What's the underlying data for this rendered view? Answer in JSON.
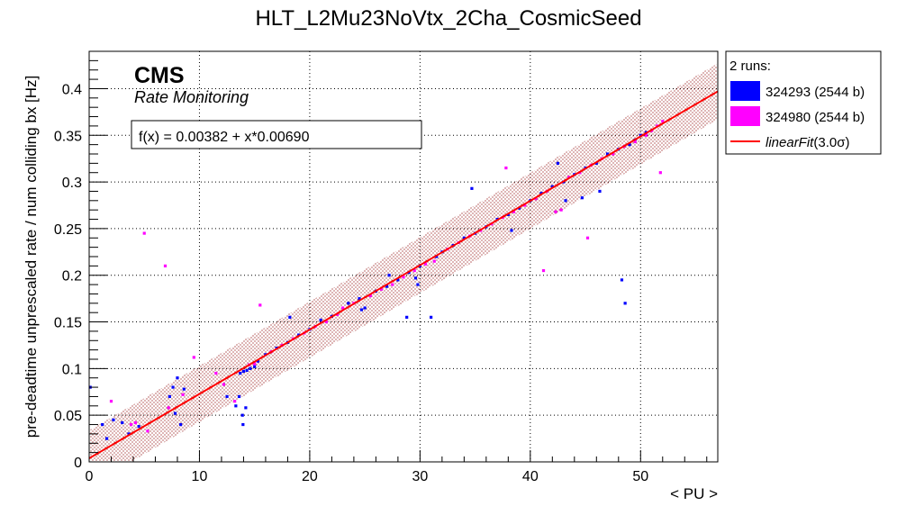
{
  "chart_data": {
    "type": "scatter",
    "title": "HLT_L2Mu23NoVtx_2Cha_CosmicSeed",
    "xlabel": "< PU >",
    "ylabel": "pre-deadtime unprescaled rate / num colliding bx [Hz]",
    "xlim": [
      0,
      57
    ],
    "ylim": [
      0,
      0.44
    ],
    "x_ticks": [
      0,
      10,
      20,
      30,
      40,
      50
    ],
    "y_ticks": [
      0,
      0.05,
      0.1,
      0.15,
      0.2,
      0.25,
      0.3,
      0.35,
      0.4
    ],
    "x_tick_labels": [
      "0",
      "10",
      "20",
      "30",
      "40",
      "50"
    ],
    "y_tick_labels": [
      "0",
      "0.05",
      "0.1",
      "0.15",
      "0.2",
      "0.25",
      "0.3",
      "0.35",
      "0.4"
    ],
    "grid": true,
    "cms_label": "CMS",
    "cms_sublabel": "Rate Monitoring",
    "fit": {
      "label": "f(x) = 0.00382 + x*0.00690",
      "intercept": 0.00382,
      "slope": 0.0069,
      "band_halfwidth": 0.03,
      "color": "#ff0000",
      "band_color": "#8b0000"
    },
    "legend": {
      "position": "top-right",
      "header": "2 runs:",
      "entries": [
        {
          "label": "324293 (2544 b)",
          "color": "#0000ff",
          "kind": "box"
        },
        {
          "label": "324980 (2544 b)",
          "color": "#ff00ff",
          "kind": "box"
        },
        {
          "label_main": "linearFit",
          "label_suffix": "(3.0σ)",
          "color": "#ff0000",
          "kind": "line"
        }
      ]
    },
    "series": [
      {
        "name": "324293 (2544 b)",
        "color": "#0000ff",
        "points": [
          [
            0.1,
            0.08
          ],
          [
            1.2,
            0.04
          ],
          [
            1.6,
            0.025
          ],
          [
            2.2,
            0.045
          ],
          [
            3.0,
            0.042
          ],
          [
            3.6,
            0.03
          ],
          [
            4.5,
            0.038
          ],
          [
            7.3,
            0.07
          ],
          [
            7.6,
            0.08
          ],
          [
            7.8,
            0.052
          ],
          [
            8.0,
            0.09
          ],
          [
            8.3,
            0.04
          ],
          [
            8.6,
            0.078
          ],
          [
            12.5,
            0.07
          ],
          [
            13.3,
            0.06
          ],
          [
            13.6,
            0.07
          ],
          [
            13.9,
            0.05
          ],
          [
            13.95,
            0.04
          ],
          [
            14.2,
            0.058
          ],
          [
            13.7,
            0.095
          ],
          [
            14.0,
            0.097
          ],
          [
            14.3,
            0.098
          ],
          [
            14.6,
            0.1
          ],
          [
            15.0,
            0.102
          ],
          [
            15.3,
            0.108
          ],
          [
            16.0,
            0.115
          ],
          [
            17.0,
            0.122
          ],
          [
            18.0,
            0.128
          ],
          [
            18.2,
            0.155
          ],
          [
            19.0,
            0.136
          ],
          [
            20.0,
            0.142
          ],
          [
            21.0,
            0.152
          ],
          [
            22.0,
            0.156
          ],
          [
            23.5,
            0.17
          ],
          [
            24.5,
            0.175
          ],
          [
            24.7,
            0.163
          ],
          [
            25.0,
            0.165
          ],
          [
            26.0,
            0.183
          ],
          [
            27.0,
            0.188
          ],
          [
            27.2,
            0.2
          ],
          [
            28.0,
            0.195
          ],
          [
            28.8,
            0.155
          ],
          [
            29.0,
            0.203
          ],
          [
            29.6,
            0.197
          ],
          [
            29.8,
            0.19
          ],
          [
            30.0,
            0.21
          ],
          [
            31.0,
            0.155
          ],
          [
            31.5,
            0.22
          ],
          [
            32.0,
            0.225
          ],
          [
            33.0,
            0.232
          ],
          [
            34.0,
            0.24
          ],
          [
            34.7,
            0.293
          ],
          [
            35.0,
            0.245
          ],
          [
            36.0,
            0.252
          ],
          [
            37.0,
            0.26
          ],
          [
            38.0,
            0.265
          ],
          [
            38.3,
            0.248
          ],
          [
            39.0,
            0.272
          ],
          [
            40.0,
            0.28
          ],
          [
            41.0,
            0.288
          ],
          [
            42.0,
            0.295
          ],
          [
            42.5,
            0.32
          ],
          [
            43.0,
            0.3
          ],
          [
            43.2,
            0.28
          ],
          [
            44.0,
            0.308
          ],
          [
            44.7,
            0.283
          ],
          [
            45.0,
            0.315
          ],
          [
            46.0,
            0.32
          ],
          [
            46.3,
            0.29
          ],
          [
            47.0,
            0.33
          ],
          [
            48.0,
            0.335
          ],
          [
            48.3,
            0.195
          ],
          [
            48.6,
            0.17
          ],
          [
            49.0,
            0.34
          ],
          [
            49.5,
            0.345
          ],
          [
            50.0,
            0.35
          ],
          [
            50.5,
            0.353
          ]
        ]
      },
      {
        "name": "324980 (2544 b)",
        "color": "#ff00ff",
        "points": [
          [
            2.0,
            0.065
          ],
          [
            3.8,
            0.04
          ],
          [
            4.2,
            0.042
          ],
          [
            5.0,
            0.245
          ],
          [
            5.3,
            0.033
          ],
          [
            6.9,
            0.21
          ],
          [
            7.2,
            0.058
          ],
          [
            8.5,
            0.072
          ],
          [
            9.5,
            0.112
          ],
          [
            11.5,
            0.095
          ],
          [
            12.2,
            0.083
          ],
          [
            13.2,
            0.065
          ],
          [
            14.5,
            0.104
          ],
          [
            15.0,
            0.105
          ],
          [
            15.5,
            0.168
          ],
          [
            16.5,
            0.118
          ],
          [
            17.5,
            0.125
          ],
          [
            18.5,
            0.132
          ],
          [
            19.5,
            0.138
          ],
          [
            20.5,
            0.145
          ],
          [
            21.5,
            0.15
          ],
          [
            22.5,
            0.158
          ],
          [
            23.0,
            0.165
          ],
          [
            24.0,
            0.17
          ],
          [
            25.5,
            0.178
          ],
          [
            26.5,
            0.185
          ],
          [
            27.5,
            0.19
          ],
          [
            28.5,
            0.198
          ],
          [
            29.5,
            0.205
          ],
          [
            30.5,
            0.212
          ],
          [
            31.3,
            0.215
          ],
          [
            32.5,
            0.228
          ],
          [
            33.5,
            0.235
          ],
          [
            34.5,
            0.242
          ],
          [
            35.5,
            0.248
          ],
          [
            36.5,
            0.255
          ],
          [
            37.5,
            0.262
          ],
          [
            37.8,
            0.315
          ],
          [
            38.5,
            0.268
          ],
          [
            39.5,
            0.275
          ],
          [
            40.5,
            0.282
          ],
          [
            41.2,
            0.205
          ],
          [
            41.5,
            0.29
          ],
          [
            42.3,
            0.268
          ],
          [
            42.8,
            0.27
          ],
          [
            43.5,
            0.305
          ],
          [
            44.5,
            0.31
          ],
          [
            45.2,
            0.24
          ],
          [
            45.5,
            0.318
          ],
          [
            46.5,
            0.325
          ],
          [
            47.5,
            0.33
          ],
          [
            48.5,
            0.338
          ],
          [
            49.5,
            0.343
          ],
          [
            50.5,
            0.35
          ],
          [
            51.0,
            0.355
          ],
          [
            51.5,
            0.36
          ],
          [
            51.8,
            0.31
          ],
          [
            52.0,
            0.365
          ]
        ]
      }
    ]
  }
}
